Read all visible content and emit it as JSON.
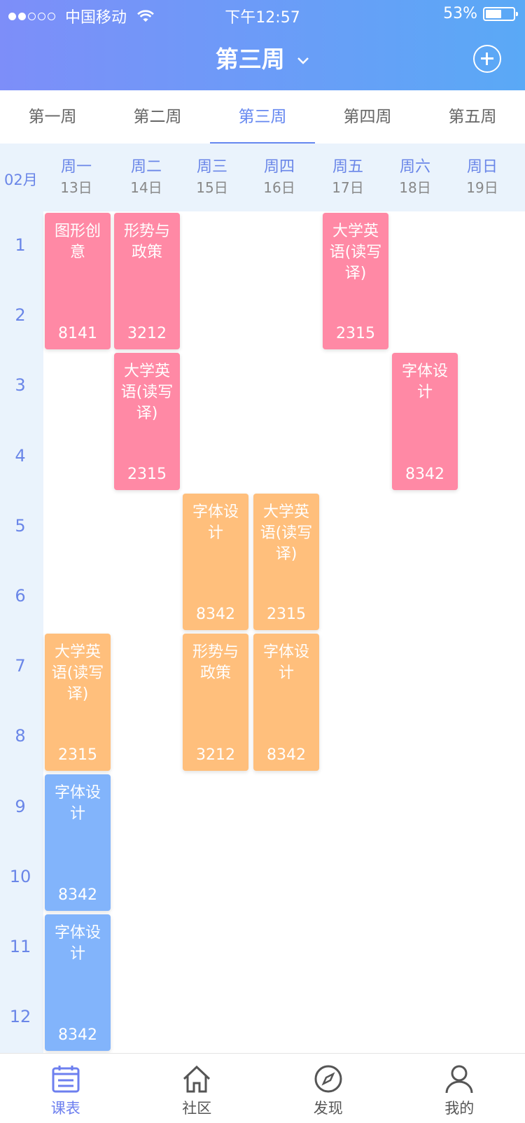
{
  "status": {
    "carrier": "中国移动",
    "time": "下午12:57",
    "battery": "53%",
    "battery_level": 0.53
  },
  "header": {
    "title": "第三周"
  },
  "tabs": [
    {
      "label": "第一周"
    },
    {
      "label": "第二周"
    },
    {
      "label": "第三周",
      "active": true
    },
    {
      "label": "第四周"
    },
    {
      "label": "第五周"
    }
  ],
  "month": "02月",
  "days": [
    {
      "name": "周一",
      "date": "13日"
    },
    {
      "name": "周二",
      "date": "14日"
    },
    {
      "name": "周三",
      "date": "15日"
    },
    {
      "name": "周四",
      "date": "16日"
    },
    {
      "name": "周五",
      "date": "17日"
    },
    {
      "name": "周六",
      "date": "18日"
    },
    {
      "name": "周日",
      "date": "19日"
    }
  ],
  "periods": [
    "1",
    "2",
    "3",
    "4",
    "5",
    "6",
    "7",
    "8",
    "9",
    "10",
    "11",
    "12"
  ],
  "courses": [
    {
      "day": 1,
      "start": 1,
      "span": 2,
      "name": "图形创意",
      "room": "8141",
      "color": "#ff89a5"
    },
    {
      "day": 2,
      "start": 1,
      "span": 2,
      "name": "形势与政策",
      "room": "3212",
      "color": "#ff89a5"
    },
    {
      "day": 5,
      "start": 1,
      "span": 2,
      "name": "大学英语(读写译)",
      "room": "2315",
      "color": "#ff89a5"
    },
    {
      "day": 2,
      "start": 3,
      "span": 2,
      "name": "大学英语(读写译)",
      "room": "2315",
      "color": "#ff89a5"
    },
    {
      "day": 6,
      "start": 3,
      "span": 2,
      "name": "字体设计",
      "room": "8342",
      "color": "#ff89a5"
    },
    {
      "day": 3,
      "start": 5,
      "span": 2,
      "name": "字体设计",
      "room": "8342",
      "color": "#ffbf7c"
    },
    {
      "day": 4,
      "start": 5,
      "span": 2,
      "name": "大学英语(读写译)",
      "room": "2315",
      "color": "#ffbf7c"
    },
    {
      "day": 1,
      "start": 7,
      "span": 2,
      "name": "大学英语(读写译)",
      "room": "2315",
      "color": "#ffbf7c"
    },
    {
      "day": 3,
      "start": 7,
      "span": 2,
      "name": "形势与政策",
      "room": "3212",
      "color": "#ffbf7c"
    },
    {
      "day": 4,
      "start": 7,
      "span": 2,
      "name": "字体设计",
      "room": "8342",
      "color": "#ffbf7c"
    },
    {
      "day": 1,
      "start": 9,
      "span": 2,
      "name": "字体设计",
      "room": "8342",
      "color": "#82b4fb"
    },
    {
      "day": 1,
      "start": 11,
      "span": 2,
      "name": "字体设计",
      "room": "8342",
      "color": "#82b4fb"
    }
  ],
  "nav": [
    {
      "label": "课表",
      "icon": "schedule-icon",
      "active": true
    },
    {
      "label": "社区",
      "icon": "home-icon"
    },
    {
      "label": "发现",
      "icon": "compass-icon"
    },
    {
      "label": "我的",
      "icon": "user-icon"
    }
  ]
}
